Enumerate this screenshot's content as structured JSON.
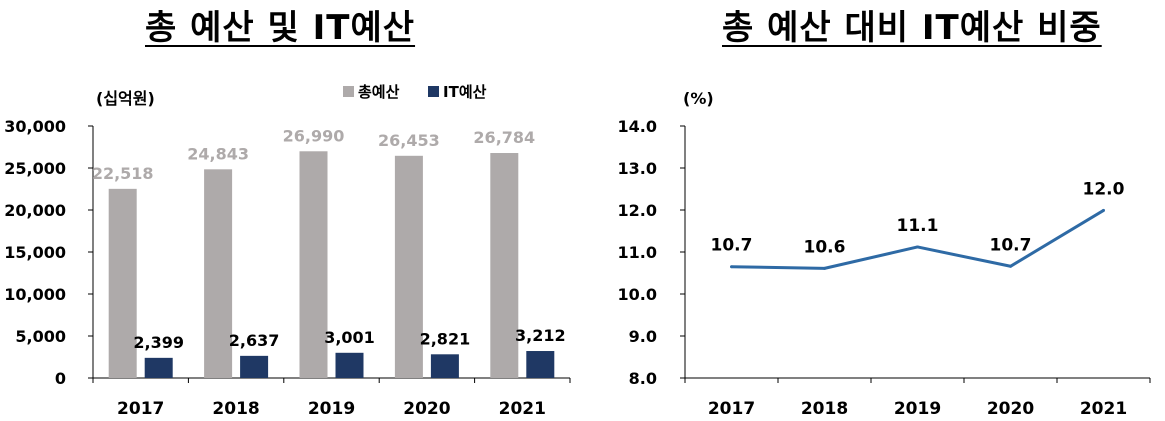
{
  "chart_data": [
    {
      "type": "bar",
      "title": "총 예산 및 IT예산",
      "unit_label": "(십억원)",
      "categories": [
        "2017",
        "2018",
        "2019",
        "2020",
        "2021"
      ],
      "series": [
        {
          "name": "총예산",
          "values": [
            22518,
            24843,
            26990,
            26453,
            26784
          ],
          "labels": [
            "22,518",
            "24,843",
            "26,990",
            "26,453",
            "26,784"
          ],
          "color": "#aeaaaa"
        },
        {
          "name": "IT예산",
          "values": [
            2399,
            2637,
            3001,
            2821,
            3212
          ],
          "labels": [
            "2,399",
            "2,637",
            "3,001",
            "2,821",
            "3,212"
          ],
          "color": "#1f3864"
        }
      ],
      "yticks": [
        "0",
        "5,000",
        "10,000",
        "15,000",
        "20,000",
        "25,000",
        "30,000"
      ],
      "ylim": [
        0,
        30000
      ],
      "grid": false,
      "legend": "top-right"
    },
    {
      "type": "line",
      "title": "총 예산 대비 IT예산 비중",
      "unit_label": "(%)",
      "categories": [
        "2017",
        "2018",
        "2019",
        "2020",
        "2021"
      ],
      "series": [
        {
          "values": [
            10.65,
            10.61,
            11.12,
            10.66,
            11.99
          ],
          "labels": [
            "10.7",
            "10.6",
            "11.1",
            "10.7",
            "12.0"
          ],
          "color": "#2e6aa5"
        }
      ],
      "yticks": [
        "8.0",
        "9.0",
        "10.0",
        "11.0",
        "12.0",
        "13.0",
        "14.0"
      ],
      "ylim": [
        8,
        14
      ],
      "grid": false
    }
  ]
}
